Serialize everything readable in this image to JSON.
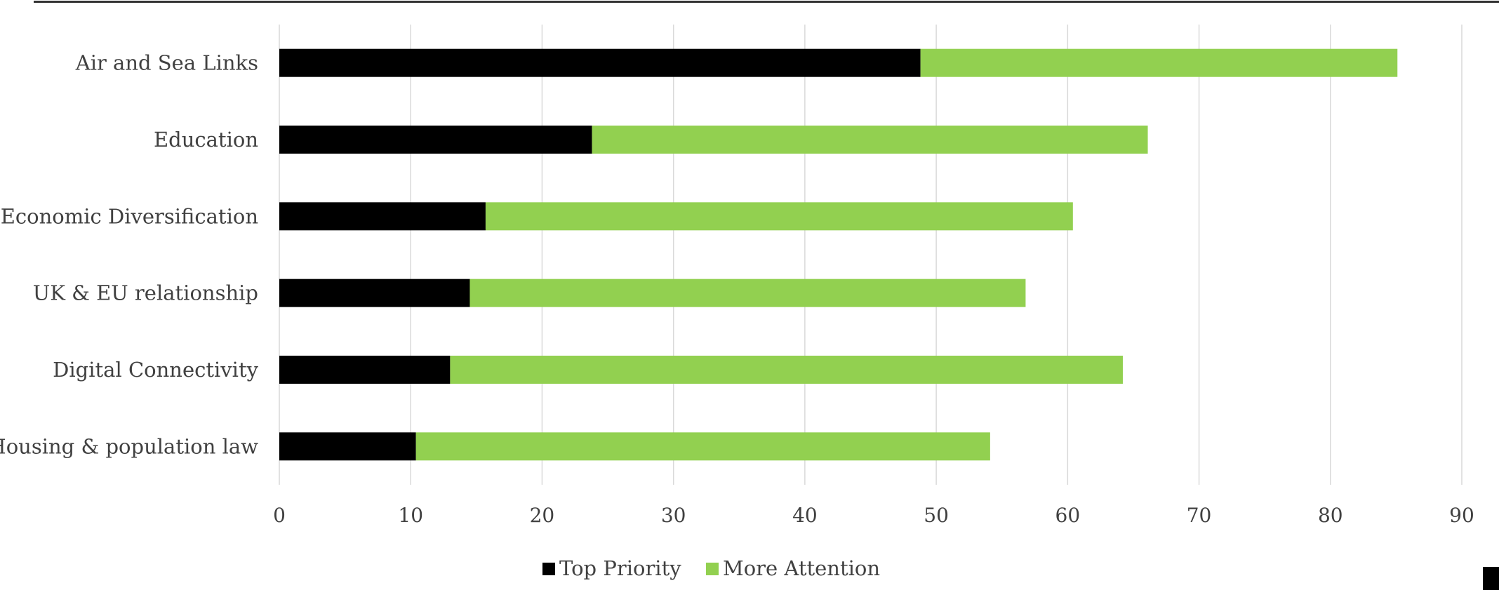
{
  "chart_data": {
    "type": "bar",
    "orientation": "horizontal",
    "stacked": true,
    "title": "",
    "xlabel": "",
    "ylabel": "",
    "categories": [
      "Air and Sea Links",
      "Education",
      "Economic Diversification",
      "UK & EU relationship",
      "Digital Connectivity",
      "Housing & population law"
    ],
    "series": [
      {
        "name": "Top Priority",
        "color": "#000000",
        "values": [
          48.8,
          23.8,
          15.7,
          14.5,
          13.0,
          10.4
        ]
      },
      {
        "name": "More Attention",
        "color": "#92D050",
        "values": [
          36.3,
          42.3,
          44.7,
          42.3,
          51.2,
          43.7
        ]
      }
    ],
    "xlim": [
      0,
      90
    ],
    "xticks": [
      "0",
      "10",
      "20",
      "30",
      "40",
      "50",
      "60",
      "70",
      "80",
      "90"
    ],
    "grid": true,
    "legend": "bottom"
  }
}
